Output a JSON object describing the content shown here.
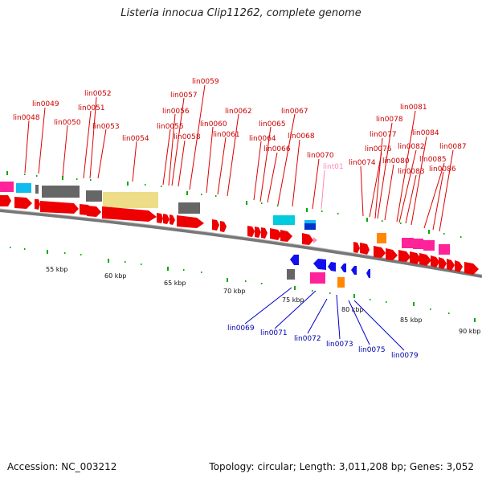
{
  "title": "Listeria innocua Clip11262, complete genome",
  "accession": "Accession: NC_003212",
  "summary": "Topology: circular; Length: 3,011,208 bp; Genes: 3,052",
  "scale_labels": [
    "55 kbp",
    "60 kbp",
    "65 kbp",
    "70 kbp",
    "75 kbp",
    "80 kbp",
    "85 kbp",
    "90 kbp"
  ],
  "top_gene_labels": [
    "lin0048",
    "lin0049",
    "lin0050",
    "lin0051",
    "lin0052",
    "lin0053",
    "lin0054",
    "lin0055",
    "lin0056",
    "lin0057",
    "lin0058",
    "lin0059",
    "lin0060",
    "lin0061",
    "lin0062",
    "lin0064",
    "lin0065",
    "lin0066",
    "lin0067",
    "lin0068",
    "lin0070",
    "lint01",
    "lin0074",
    "lin0076",
    "lin0077",
    "lin0078",
    "lin0080",
    "lin0081",
    "lin0082",
    "lin0083",
    "lin0084",
    "lin0085",
    "lin0086",
    "lin0087"
  ],
  "bottom_gene_labels": [
    "lin0069",
    "lin0071",
    "lin0072",
    "lin0073",
    "lin0075",
    "lin0079"
  ],
  "colors": {
    "forward": "#ee0000",
    "reverse": "#1010ee",
    "rna": "#ff99cc",
    "label_top": "#cc0000",
    "label_bottom": "#0000aa",
    "label_rna": "#ff88bb",
    "backbone": "#888888",
    "tick": "#00aa00"
  }
}
